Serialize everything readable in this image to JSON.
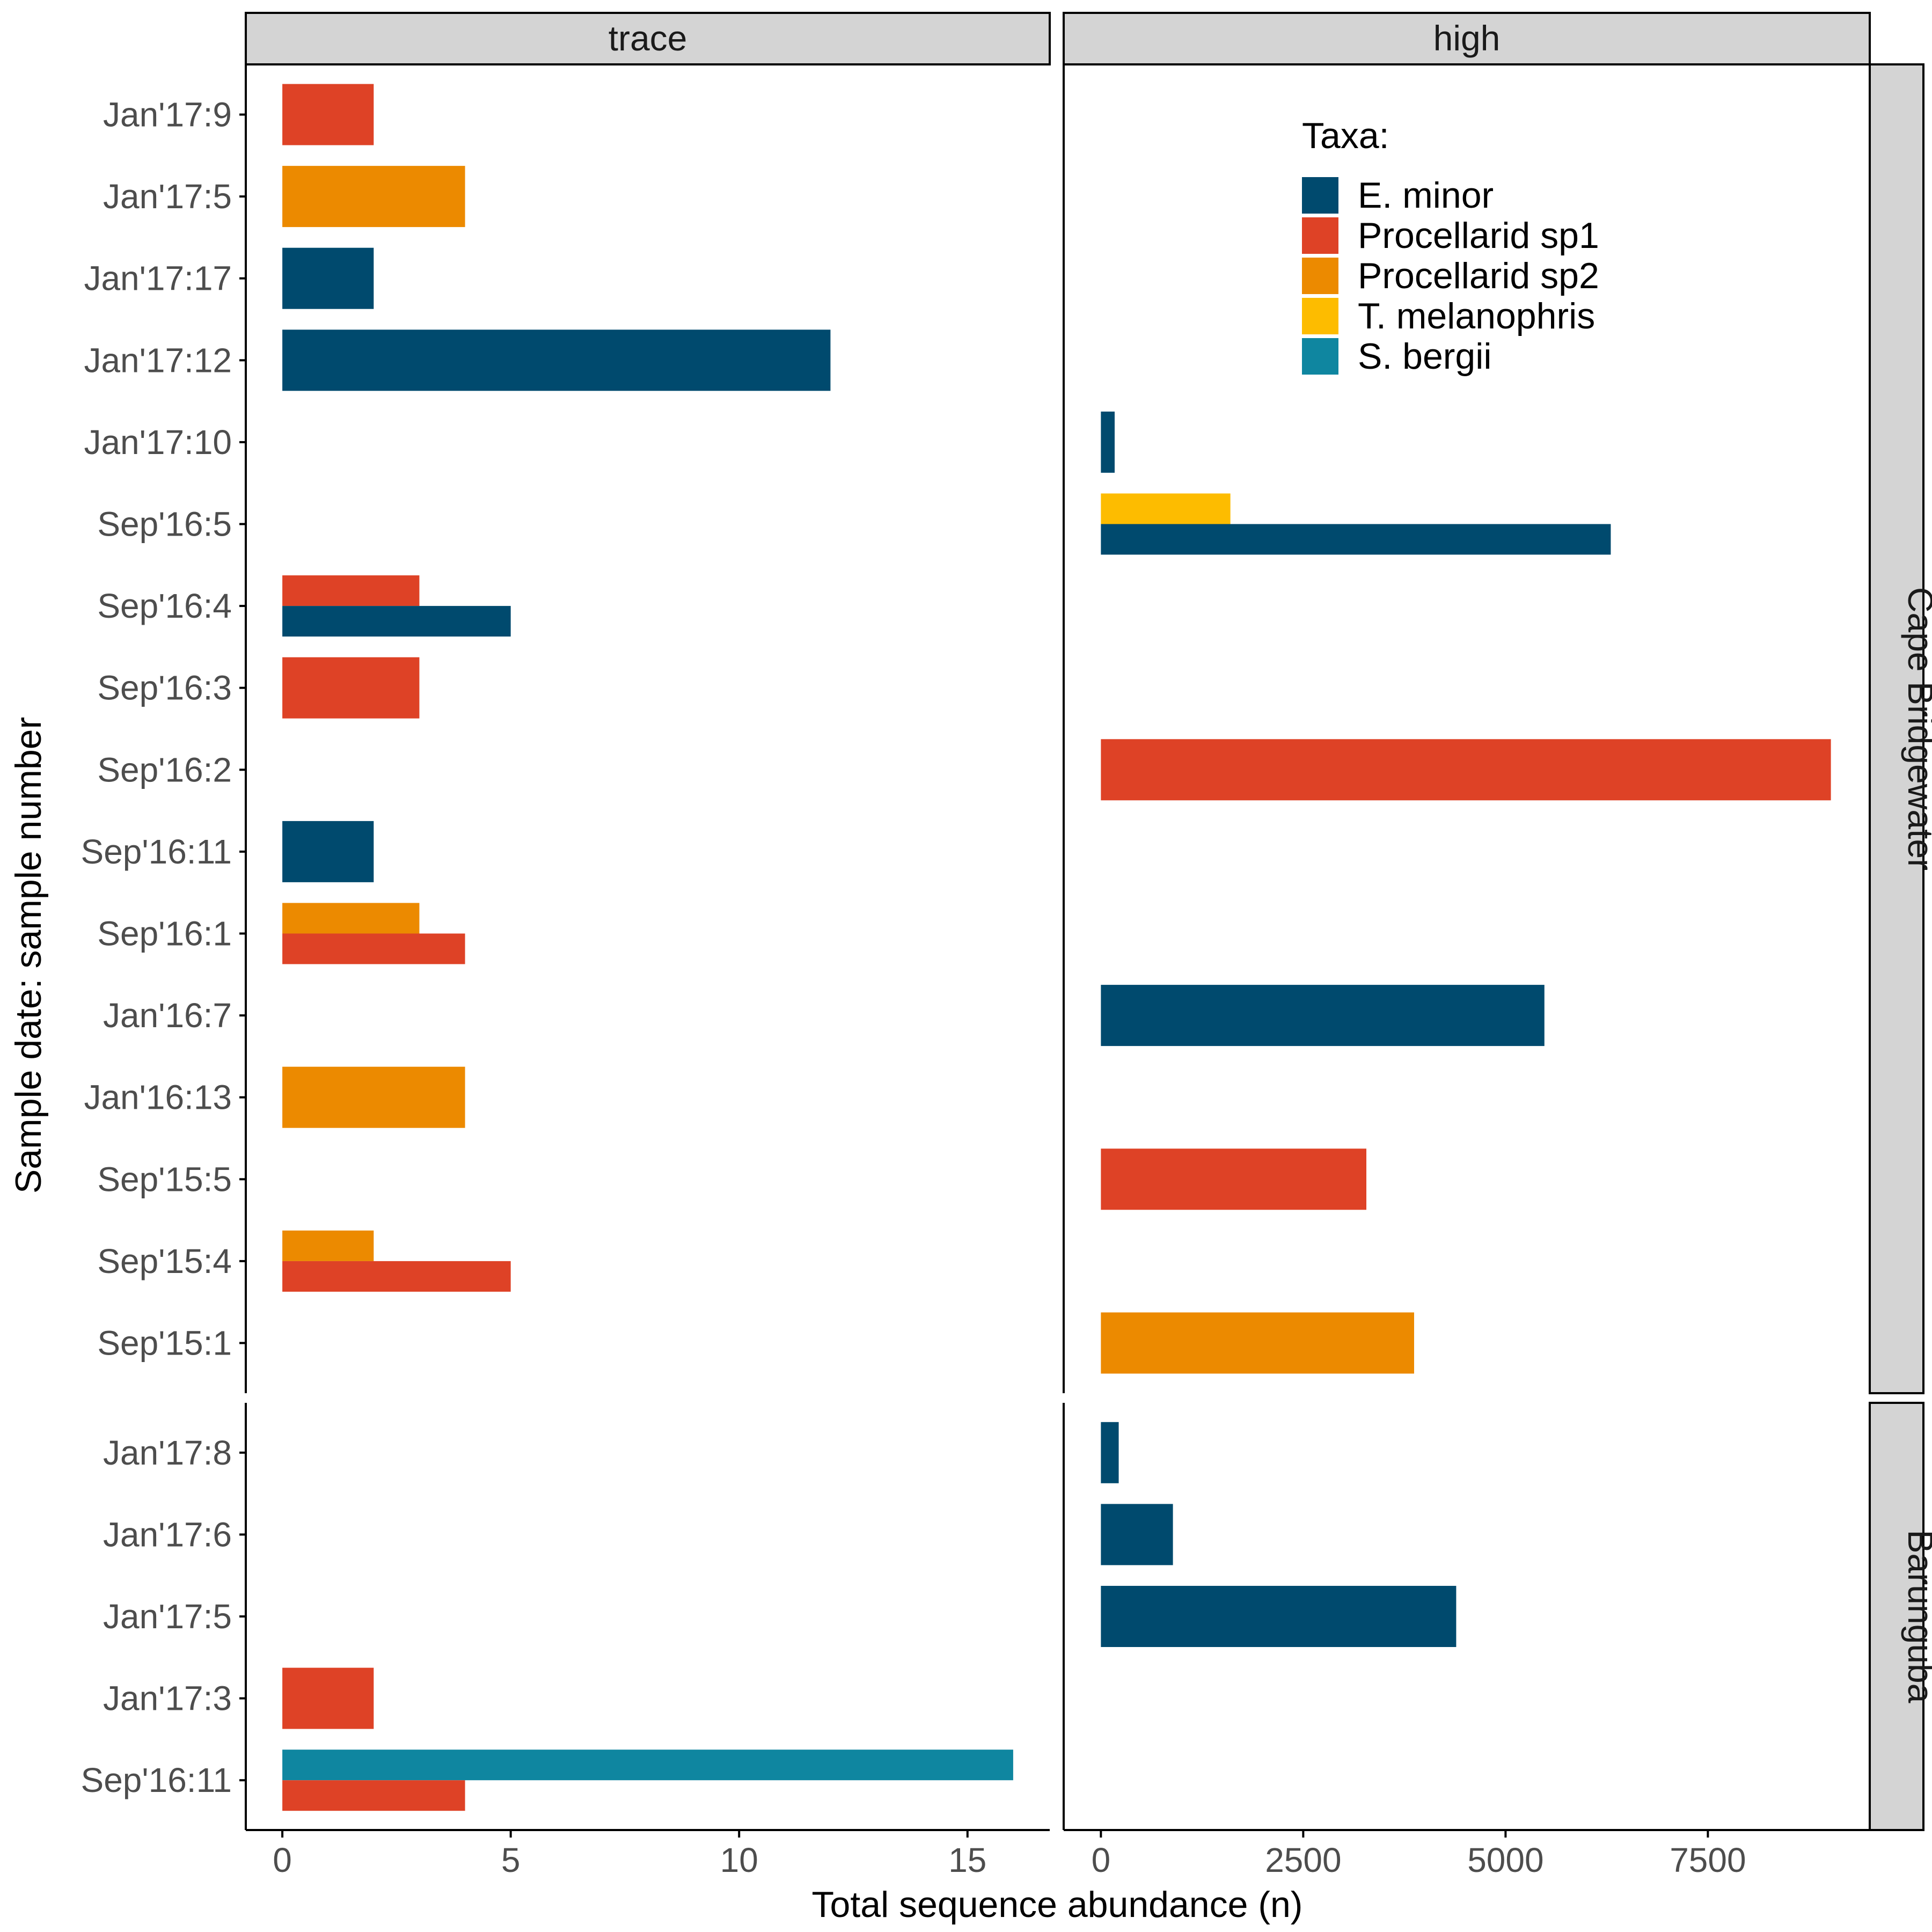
{
  "colors": {
    "E. minor": "#004a6e",
    "Procellarid sp1": "#de4226",
    "Procellarid sp2": "#ec8a00",
    "T. melanophris": "#fdbc00",
    "S. bergii": "#0f86a0",
    "strip_fill": "#d4d4d4",
    "axis": "#000000",
    "tick_text": "#4d4d4d"
  },
  "legend": {
    "title": "Taxa:",
    "entries": [
      "E. minor",
      "Procellarid sp1",
      "Procellarid sp2",
      "T. melanophris",
      "S. bergii"
    ],
    "placement": "inside top-right of the high / Cape Bridgewater panel"
  },
  "chart_data": {
    "type": "bar",
    "orientation": "horizontal",
    "grouping": "dodged bars per sample",
    "xlabel": "Total sequence abundance (n)",
    "ylabel": "Sample date: sample number",
    "grid": false,
    "columns": [
      {
        "label": "trace",
        "xlim": [
          -0.8,
          16.8
        ],
        "ticks": [
          0,
          5,
          10,
          15
        ]
      },
      {
        "label": "high",
        "xlim": [
          -460,
          9500
        ],
        "ticks": [
          0,
          2500,
          5000,
          7500
        ]
      }
    ],
    "rows": [
      {
        "label": "Cape Bridgewater",
        "samples": [
          "Jan'17:9",
          "Jan'17:5",
          "Jan'17:17",
          "Jan'17:12",
          "Jan'17:10",
          "Sep'16:5",
          "Sep'16:4",
          "Sep'16:3",
          "Sep'16:2",
          "Sep'16:11",
          "Sep'16:1",
          "Jan'16:7",
          "Jan'16:13",
          "Sep'15:5",
          "Sep'15:4",
          "Sep'15:1"
        ],
        "bars": {
          "trace": [
            {
              "sample": "Jan'17:9",
              "taxa": [
                {
                  "taxon": "Procellarid sp1",
                  "value": 2
                }
              ]
            },
            {
              "sample": "Jan'17:5",
              "taxa": [
                {
                  "taxon": "Procellarid sp2",
                  "value": 4
                }
              ]
            },
            {
              "sample": "Jan'17:17",
              "taxa": [
                {
                  "taxon": "E. minor",
                  "value": 2
                }
              ]
            },
            {
              "sample": "Jan'17:12",
              "taxa": [
                {
                  "taxon": "E. minor",
                  "value": 12
                }
              ]
            },
            {
              "sample": "Sep'16:4",
              "taxa": [
                {
                  "taxon": "Procellarid sp1",
                  "value": 3
                },
                {
                  "taxon": "E. minor",
                  "value": 5
                }
              ]
            },
            {
              "sample": "Sep'16:3",
              "taxa": [
                {
                  "taxon": "Procellarid sp1",
                  "value": 3
                }
              ]
            },
            {
              "sample": "Sep'16:11",
              "taxa": [
                {
                  "taxon": "E. minor",
                  "value": 2
                }
              ]
            },
            {
              "sample": "Sep'16:1",
              "taxa": [
                {
                  "taxon": "Procellarid sp2",
                  "value": 3
                },
                {
                  "taxon": "Procellarid sp1",
                  "value": 4
                }
              ]
            },
            {
              "sample": "Jan'16:13",
              "taxa": [
                {
                  "taxon": "Procellarid sp2",
                  "value": 4
                }
              ]
            },
            {
              "sample": "Sep'15:4",
              "taxa": [
                {
                  "taxon": "Procellarid sp2",
                  "value": 2
                },
                {
                  "taxon": "Procellarid sp1",
                  "value": 5
                }
              ]
            }
          ],
          "high": [
            {
              "sample": "Jan'17:10",
              "taxa": [
                {
                  "taxon": "E. minor",
                  "value": 170
                }
              ]
            },
            {
              "sample": "Sep'16:5",
              "taxa": [
                {
                  "taxon": "T. melanophris",
                  "value": 1600
                },
                {
                  "taxon": "E. minor",
                  "value": 6300
                }
              ]
            },
            {
              "sample": "Sep'16:2",
              "taxa": [
                {
                  "taxon": "Procellarid sp1",
                  "value": 9020
                }
              ]
            },
            {
              "sample": "Jan'16:7",
              "taxa": [
                {
                  "taxon": "E. minor",
                  "value": 5480
                }
              ]
            },
            {
              "sample": "Sep'15:5",
              "taxa": [
                {
                  "taxon": "Procellarid sp1",
                  "value": 3280
                }
              ]
            },
            {
              "sample": "Sep'15:1",
              "taxa": [
                {
                  "taxon": "Procellarid sp2",
                  "value": 3870
                }
              ]
            }
          ]
        }
      },
      {
        "label": "Barunguba",
        "samples": [
          "Jan'17:8",
          "Jan'17:6",
          "Jan'17:5",
          "Jan'17:3",
          "Sep'16:11"
        ],
        "bars": {
          "trace": [
            {
              "sample": "Jan'17:3",
              "taxa": [
                {
                  "taxon": "Procellarid sp1",
                  "value": 2
                }
              ]
            },
            {
              "sample": "Sep'16:11",
              "taxa": [
                {
                  "taxon": "S. bergii",
                  "value": 16
                },
                {
                  "taxon": "Procellarid sp1",
                  "value": 4
                }
              ]
            }
          ],
          "high": [
            {
              "sample": "Jan'17:8",
              "taxa": [
                {
                  "taxon": "E. minor",
                  "value": 220
                }
              ]
            },
            {
              "sample": "Jan'17:6",
              "taxa": [
                {
                  "taxon": "E. minor",
                  "value": 890
                }
              ]
            },
            {
              "sample": "Jan'17:5",
              "taxa": [
                {
                  "taxon": "E. minor",
                  "value": 4390
                }
              ]
            }
          ]
        }
      }
    ]
  }
}
